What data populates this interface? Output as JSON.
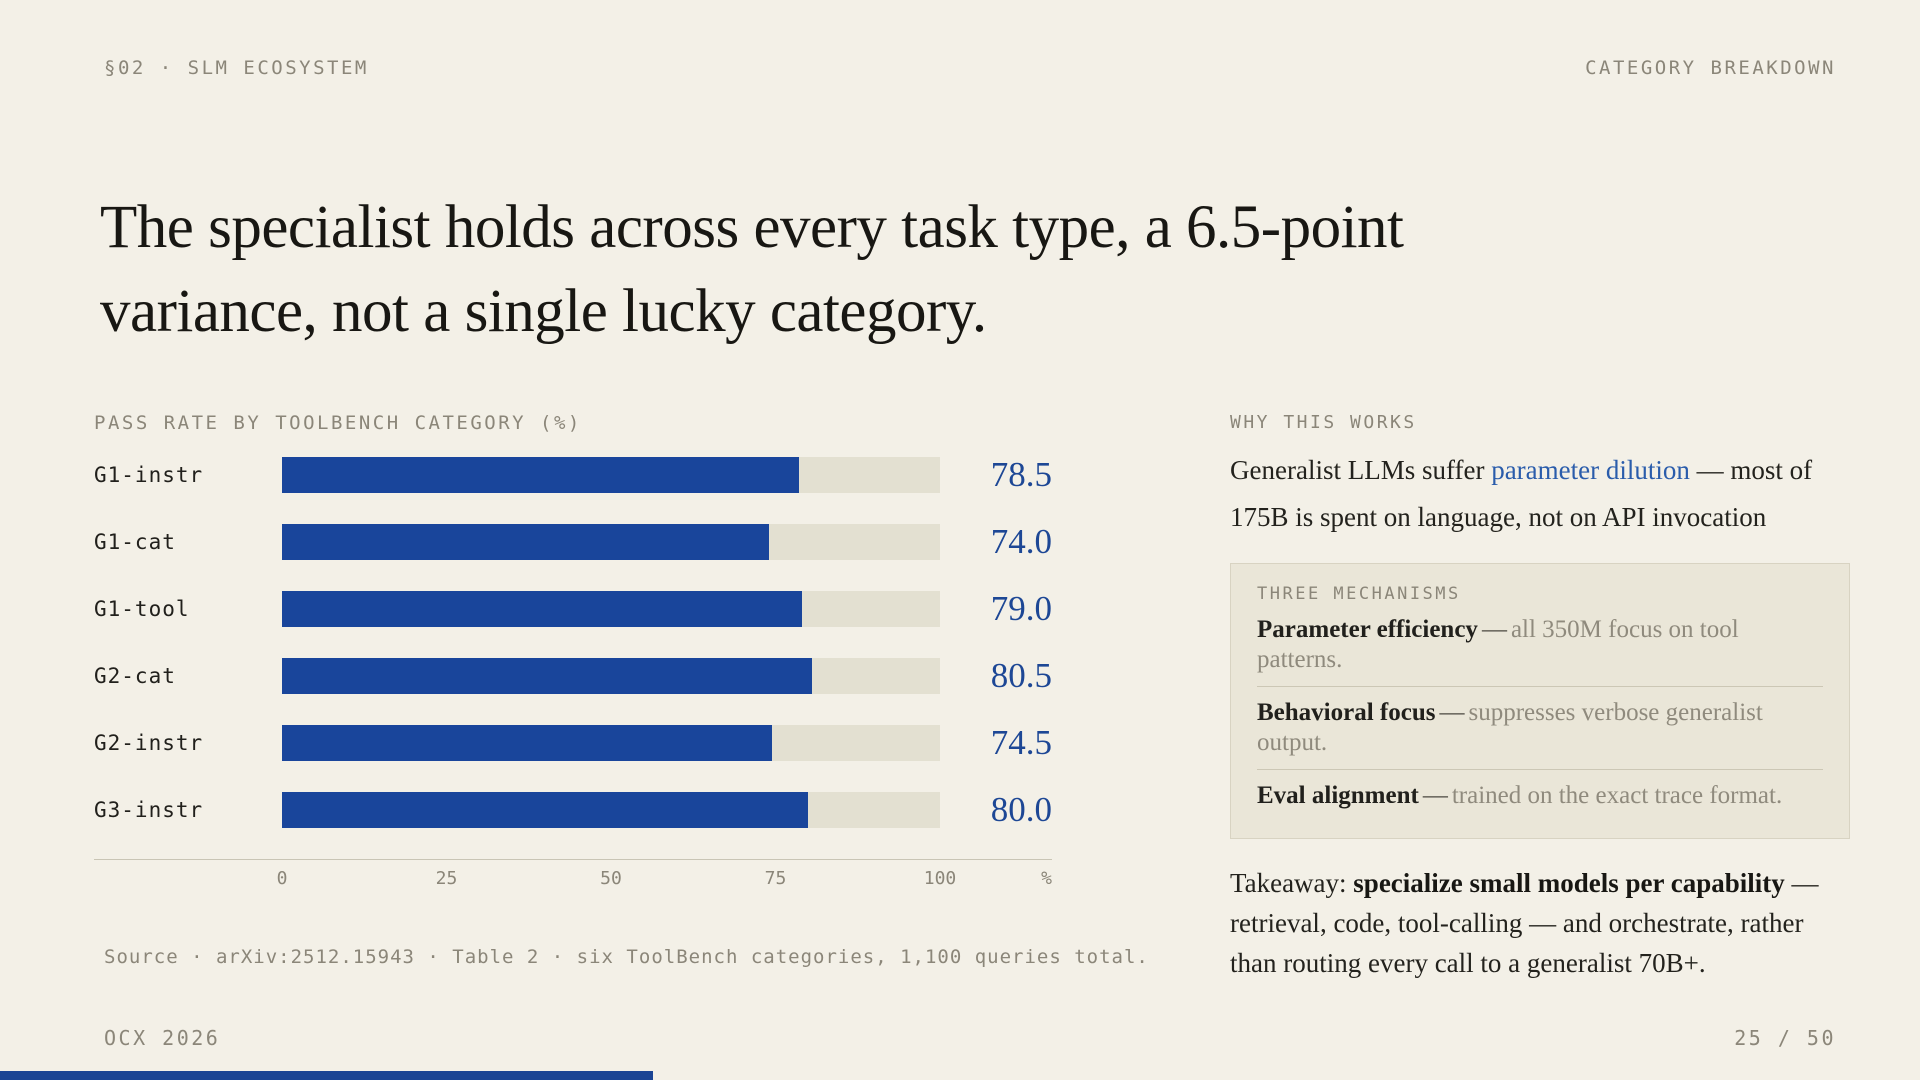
{
  "header": {
    "left": "§02 · SLM ECOSYSTEM",
    "right": "CATEGORY BREAKDOWN"
  },
  "title": {
    "lines": [
      "The specialist holds across every task type, a 6.5-point",
      "variance, not a single lucky category."
    ]
  },
  "chart_data": {
    "type": "bar",
    "orientation": "horizontal",
    "title": "PASS RATE BY TOOLBENCH CATEGORY (%)",
    "categories": [
      "G1-instr",
      "G1-cat",
      "G1-tool",
      "G2-cat",
      "G2-instr",
      "G3-instr"
    ],
    "values": [
      78.5,
      74.0,
      79.0,
      80.5,
      74.5,
      80.0
    ],
    "value_labels": [
      "78.5",
      "74.0",
      "79.0",
      "80.5",
      "74.5",
      "80.0"
    ],
    "xlim": [
      0,
      100
    ],
    "x_ticks": [
      0,
      25,
      50,
      75,
      100
    ],
    "x_unit": "%",
    "grid": false,
    "bar_color": "#19459b",
    "track_color": "#e3e0d1",
    "value_color": "#1d4795"
  },
  "source": "Source · arXiv:2512.15943 · Table 2 · six ToolBench categories, 1,100 queries total.",
  "aside": {
    "heading": "WHY THIS WORKS",
    "para": {
      "pre": "Generalist LLMs suffer ",
      "link": "parameter dilution",
      "post": " — most of 175B is spent on language, not on API invocation"
    },
    "link_color": "#2a5cab",
    "box": {
      "heading": "THREE MECHANISMS",
      "items": [
        {
          "term": "Parameter efficiency",
          "dash": "—",
          "desc": "all 350M focus on tool patterns."
        },
        {
          "term": "Behavioral focus",
          "dash": "—",
          "desc": "suppresses verbose generalist output."
        },
        {
          "term": "Eval alignment",
          "dash": "—",
          "desc": "trained on the exact trace format."
        }
      ]
    },
    "takeaway": {
      "pre": "Takeaway: ",
      "bold": "specialize small models per capability",
      "post": " — retrieval, code, tool-calling — and orchestrate, rather than routing every call to a generalist 70B+."
    }
  },
  "footer": {
    "left": "OCX 2026",
    "right": "25 / 50",
    "progress_pct": 34
  },
  "colors": {
    "background": "#f3f0e7",
    "accent_navy": "#19459b",
    "muted_gray": "#8b8679",
    "box_bg": "#eae6d8"
  }
}
